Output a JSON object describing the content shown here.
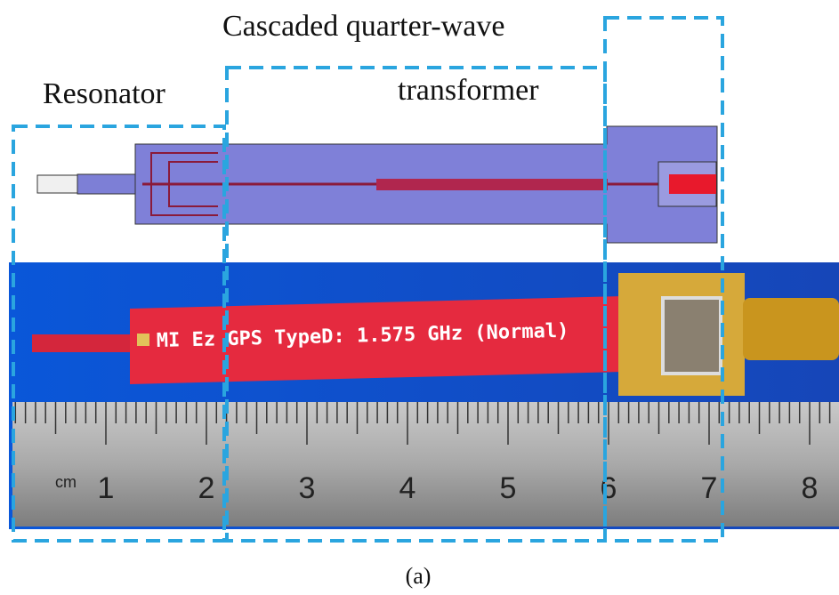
{
  "labels": {
    "top": "Cascaded quarter-wave",
    "transformer": "transformer",
    "resonator": "Resonator"
  },
  "pcb_text": "MI Ez GPS TypeD: 1.575 GHz (Normal)",
  "ruler": {
    "unit": "cm",
    "numbers": [
      "1",
      "2",
      "3",
      "4",
      "5",
      "6",
      "7",
      "8"
    ]
  },
  "caption": "(a)"
}
